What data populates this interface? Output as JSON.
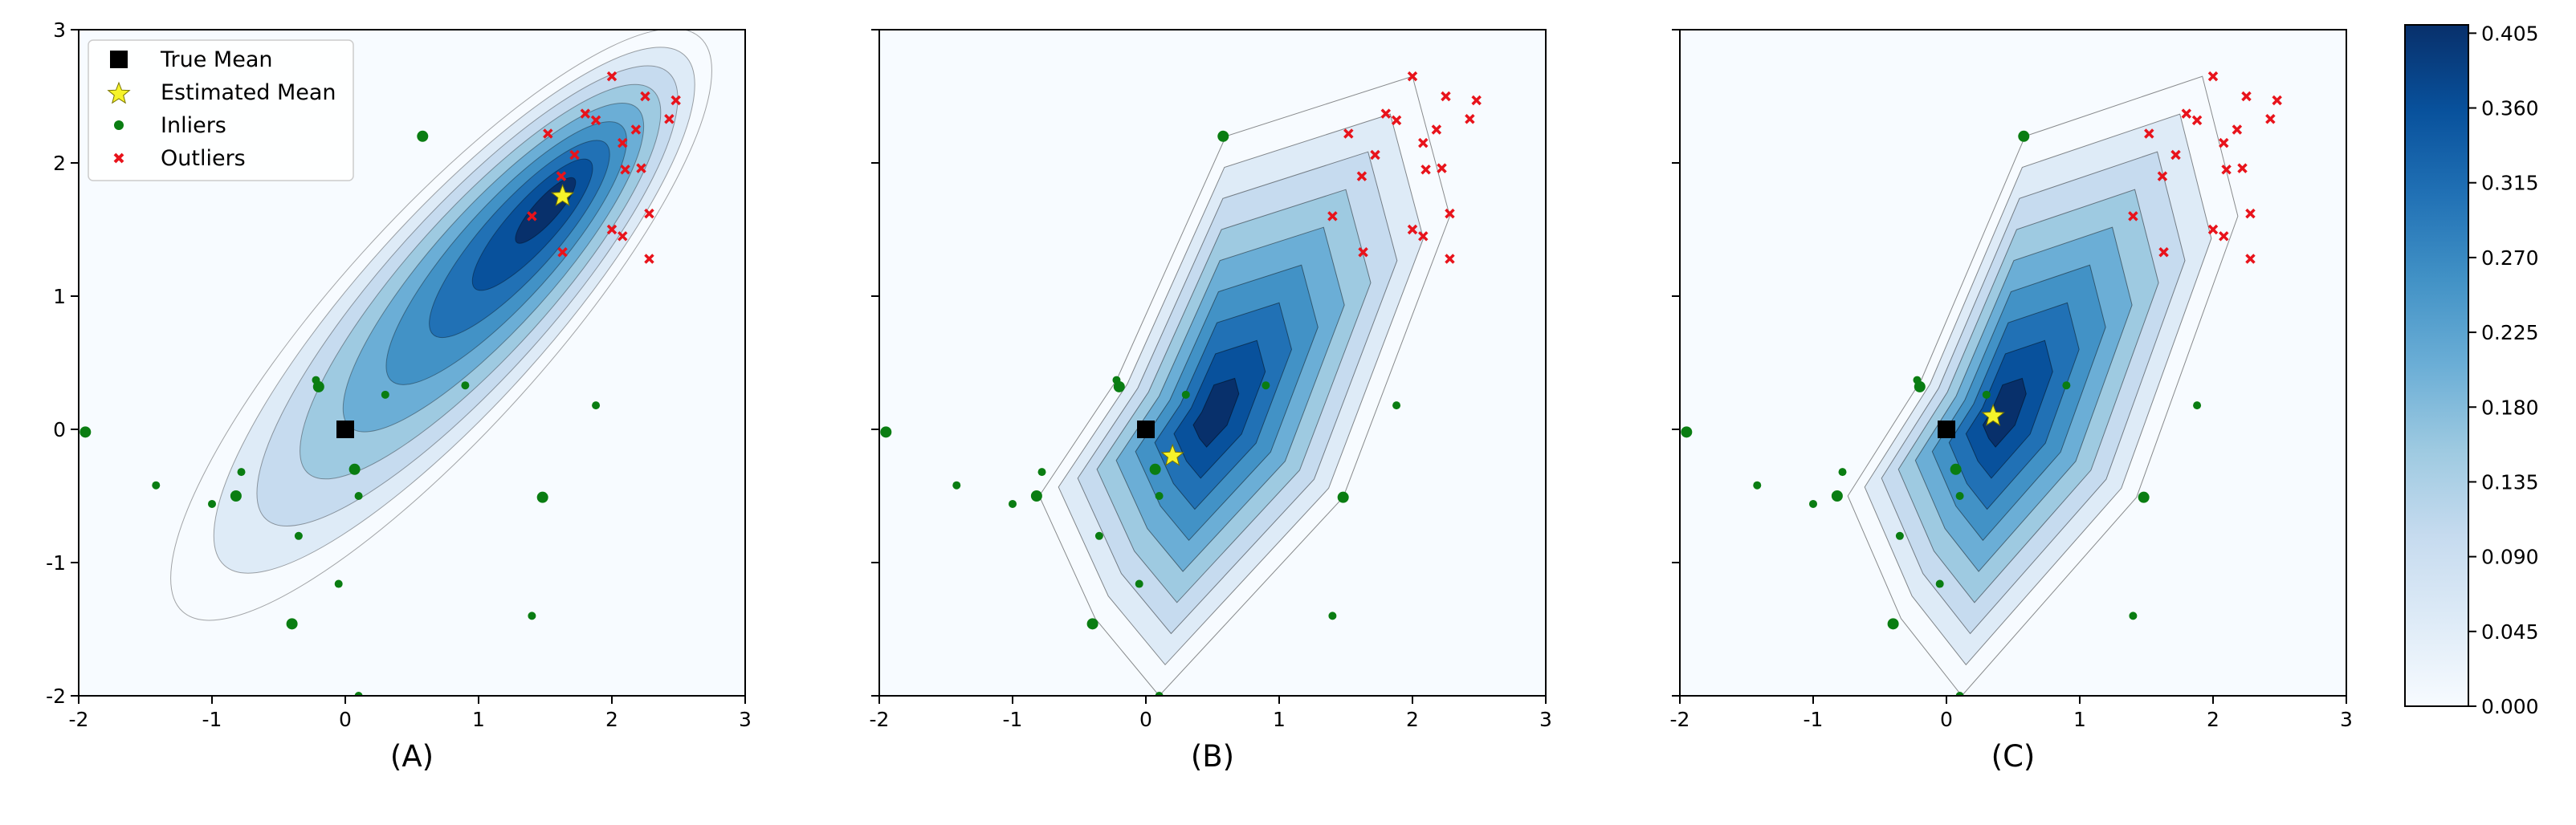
{
  "colors": {
    "background": "#f7fbff",
    "inlier": "#0a7d12",
    "outlier": "#e8131b",
    "true_mean": "#000000",
    "estimated_mean": "#f6f32a",
    "colormap": [
      "#f7fbff",
      "#deebf7",
      "#c6dbef",
      "#9ecae1",
      "#6baed6",
      "#4292c6",
      "#2171b5",
      "#08519c",
      "#08306b"
    ]
  },
  "legend": {
    "true_mean": "True Mean",
    "estimated_mean": "Estimated Mean",
    "inliers": "Inliers",
    "outliers": "Outliers"
  },
  "chart_data": [
    {
      "type": "scatter",
      "label": "(A)",
      "xlim": [
        -2,
        3
      ],
      "ylim": [
        -2,
        3
      ],
      "x_ticks": [
        "-2",
        "-1",
        "0",
        "1",
        "2",
        "3"
      ],
      "y_ticks": [
        "3",
        "2",
        "1",
        "0",
        "-1",
        "-2"
      ],
      "true_mean": [
        0.0,
        0.0
      ],
      "estimated_mean": [
        1.63,
        1.75
      ],
      "density_peak": [
        1.6,
        1.75
      ],
      "shape": "ellipse"
    },
    {
      "type": "scatter",
      "label": "(B)",
      "xlim": [
        -2,
        3
      ],
      "ylim": [
        -2,
        3
      ],
      "x_ticks": [
        "-2",
        "-1",
        "0",
        "1",
        "2",
        "3"
      ],
      "true_mean": [
        0.0,
        0.0
      ],
      "estimated_mean": [
        0.2,
        -0.2
      ],
      "density_peak": [
        0.5,
        0.1
      ],
      "shape": "polygon"
    },
    {
      "type": "scatter",
      "label": "(C)",
      "xlim": [
        -2,
        3
      ],
      "ylim": [
        -2,
        3
      ],
      "x_ticks": [
        "-2",
        "-1",
        "0",
        "1",
        "2",
        "3"
      ],
      "true_mean": [
        0.0,
        0.0
      ],
      "estimated_mean": [
        0.35,
        0.1
      ],
      "density_peak": [
        0.4,
        0.1
      ],
      "shape": "polygon"
    }
  ],
  "inliers": [
    [
      -1.95,
      -0.02
    ],
    [
      -1.42,
      -0.42
    ],
    [
      -1.0,
      -0.56
    ],
    [
      -0.82,
      -0.5
    ],
    [
      -0.78,
      -0.32
    ],
    [
      -0.35,
      -0.8
    ],
    [
      -0.4,
      -1.46
    ],
    [
      -0.05,
      -1.16
    ],
    [
      0.1,
      -2.0
    ],
    [
      0.07,
      -0.3
    ],
    [
      0.1,
      -0.5
    ],
    [
      -0.22,
      0.37
    ],
    [
      -0.2,
      0.32
    ],
    [
      0.3,
      0.26
    ],
    [
      0.9,
      0.33
    ],
    [
      1.48,
      -0.51
    ],
    [
      1.4,
      -1.4
    ],
    [
      1.88,
      0.18
    ],
    [
      0.58,
      2.2
    ]
  ],
  "outliers": [
    [
      2.0,
      2.65
    ],
    [
      1.52,
      2.22
    ],
    [
      1.8,
      2.37
    ],
    [
      1.88,
      2.32
    ],
    [
      2.18,
      2.25
    ],
    [
      2.08,
      2.15
    ],
    [
      2.22,
      1.96
    ],
    [
      2.28,
      1.62
    ],
    [
      1.63,
      1.33
    ],
    [
      2.0,
      1.5
    ],
    [
      2.08,
      1.45
    ],
    [
      1.62,
      1.9
    ],
    [
      1.72,
      2.06
    ],
    [
      2.25,
      2.5
    ],
    [
      2.48,
      2.47
    ],
    [
      2.43,
      2.33
    ],
    [
      2.1,
      1.95
    ],
    [
      2.28,
      1.28
    ],
    [
      1.4,
      1.6
    ]
  ],
  "colorbar": {
    "ticks": [
      "0.405",
      "0.360",
      "0.315",
      "0.270",
      "0.225",
      "0.180",
      "0.135",
      "0.090",
      "0.045",
      "0.000"
    ],
    "min": 0.0,
    "max": 0.41
  }
}
